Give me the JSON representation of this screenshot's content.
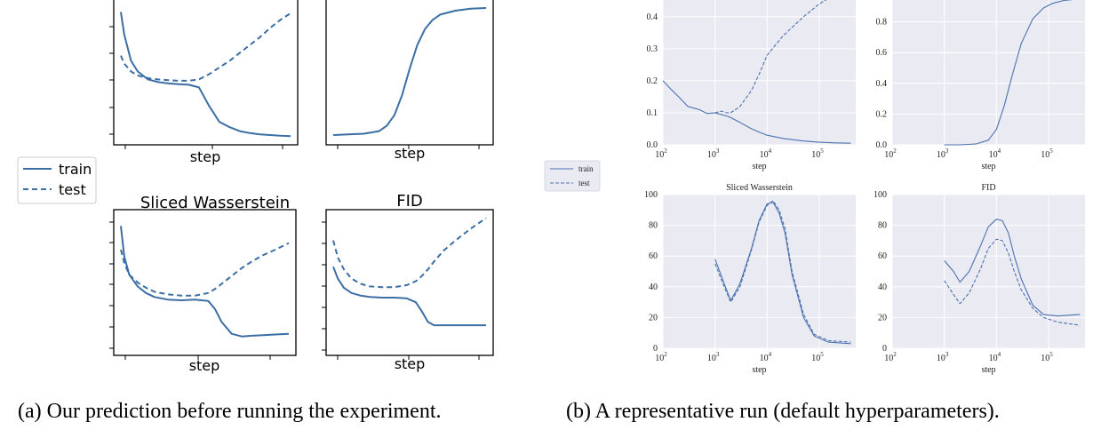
{
  "panel_a": {
    "caption": "(a) Our prediction before running the experiment.",
    "legend": {
      "train": "train",
      "test": "test"
    },
    "charts": [
      {
        "title": "",
        "xlabel": "step"
      },
      {
        "title": "",
        "xlabel": "step"
      },
      {
        "title": "Sliced Wasserstein",
        "xlabel": "step"
      },
      {
        "title": "FID",
        "xlabel": "step"
      }
    ]
  },
  "panel_b": {
    "caption": "(b) A representative run (default hyperparameters).",
    "legend": {
      "train": "train",
      "test": "test"
    }
  },
  "colors": {
    "sketch_line": "#3b6ea5",
    "real_line": "#4c72b0",
    "grid_bg": "#eaeaf2",
    "grid_line": "#ffffff"
  },
  "chart_data": [
    {
      "type": "line",
      "panel": "a",
      "title": "",
      "xlabel": "step",
      "ylabel": "",
      "x": [
        0,
        0.02,
        0.06,
        0.1,
        0.16,
        0.22,
        0.28,
        0.34,
        0.4,
        0.46,
        0.52,
        0.58,
        0.64,
        0.7,
        0.76,
        0.82,
        0.88,
        0.94,
        1.0
      ],
      "series": [
        {
          "name": "train",
          "style": "solid",
          "values": [
            0.95,
            0.78,
            0.58,
            0.5,
            0.44,
            0.42,
            0.41,
            0.405,
            0.4,
            0.38,
            0.24,
            0.12,
            0.08,
            0.05,
            0.035,
            0.025,
            0.02,
            0.015,
            0.012
          ]
        },
        {
          "name": "test",
          "style": "dashed",
          "values": [
            0.62,
            0.56,
            0.5,
            0.47,
            0.45,
            0.44,
            0.435,
            0.43,
            0.43,
            0.44,
            0.48,
            0.53,
            0.58,
            0.64,
            0.7,
            0.76,
            0.83,
            0.89,
            0.94
          ]
        }
      ]
    },
    {
      "type": "line",
      "panel": "a",
      "title": "",
      "xlabel": "step",
      "ylabel": "",
      "x": [
        0,
        0.1,
        0.2,
        0.3,
        0.35,
        0.4,
        0.45,
        0.5,
        0.55,
        0.6,
        0.65,
        0.7,
        0.8,
        0.9,
        1.0
      ],
      "series": [
        {
          "name": "train",
          "style": "solid",
          "values": [
            0.02,
            0.025,
            0.03,
            0.05,
            0.09,
            0.17,
            0.32,
            0.52,
            0.7,
            0.82,
            0.89,
            0.93,
            0.96,
            0.975,
            0.98
          ]
        }
      ]
    },
    {
      "type": "line",
      "panel": "a",
      "title": "Sliced Wasserstein",
      "xlabel": "step",
      "ylabel": "",
      "x": [
        0,
        0.02,
        0.05,
        0.1,
        0.15,
        0.2,
        0.28,
        0.36,
        0.44,
        0.52,
        0.56,
        0.6,
        0.66,
        0.72,
        0.78,
        0.85,
        0.92,
        1.0
      ],
      "series": [
        {
          "name": "train",
          "style": "solid",
          "values": [
            0.93,
            0.7,
            0.56,
            0.47,
            0.42,
            0.39,
            0.37,
            0.365,
            0.37,
            0.36,
            0.3,
            0.2,
            0.11,
            0.09,
            0.095,
            0.1,
            0.105,
            0.11
          ]
        },
        {
          "name": "test",
          "style": "dashed",
          "values": [
            0.75,
            0.65,
            0.56,
            0.5,
            0.46,
            0.43,
            0.41,
            0.4,
            0.4,
            0.42,
            0.45,
            0.49,
            0.55,
            0.61,
            0.66,
            0.71,
            0.75,
            0.8
          ]
        }
      ]
    },
    {
      "type": "line",
      "panel": "a",
      "title": "FID",
      "xlabel": "step",
      "ylabel": "",
      "x": [
        0,
        0.03,
        0.07,
        0.12,
        0.18,
        0.24,
        0.32,
        0.4,
        0.48,
        0.54,
        0.58,
        0.62,
        0.66,
        0.72,
        0.8,
        0.9,
        1.0
      ],
      "series": [
        {
          "name": "train",
          "style": "solid",
          "values": [
            0.62,
            0.53,
            0.46,
            0.42,
            0.4,
            0.39,
            0.385,
            0.385,
            0.38,
            0.35,
            0.28,
            0.2,
            0.175,
            0.175,
            0.175,
            0.175,
            0.175
          ]
        },
        {
          "name": "test",
          "style": "dashed",
          "values": [
            0.82,
            0.69,
            0.6,
            0.53,
            0.49,
            0.47,
            0.465,
            0.465,
            0.48,
            0.51,
            0.55,
            0.6,
            0.66,
            0.74,
            0.82,
            0.91,
            0.99
          ]
        }
      ]
    },
    {
      "type": "line",
      "panel": "b",
      "title": "",
      "xlabel": "step",
      "xscale": "log",
      "xlim": [
        100,
        500000
      ],
      "ylim": [
        0,
        0.48
      ],
      "yticks": [
        0.0,
        0.1,
        0.2,
        0.3,
        0.4
      ],
      "ytick_labels": [
        "0.0",
        "0.1",
        "0.2",
        "0.3",
        "0.4"
      ],
      "grid": true,
      "x": [
        100,
        150,
        200,
        300,
        500,
        700,
        1000,
        1300,
        1700,
        2000,
        3000,
        5000,
        7000,
        10000,
        20000,
        50000,
        100000,
        200000,
        400000
      ],
      "series": [
        {
          "name": "train",
          "style": "solid",
          "values": [
            0.2,
            0.17,
            0.15,
            0.12,
            0.11,
            0.098,
            0.1,
            0.095,
            0.09,
            0.085,
            0.07,
            0.05,
            0.04,
            0.03,
            0.02,
            0.012,
            0.008,
            0.006,
            0.005
          ]
        },
        {
          "name": "test",
          "style": "dashed",
          "values": [
            null,
            null,
            null,
            null,
            null,
            null,
            0.1,
            0.105,
            0.1,
            0.1,
            0.12,
            0.17,
            0.22,
            0.28,
            0.34,
            0.4,
            0.44,
            0.47,
            0.48
          ]
        }
      ]
    },
    {
      "type": "line",
      "panel": "b",
      "title": "",
      "xlabel": "step",
      "xscale": "log",
      "xlim": [
        100,
        500000
      ],
      "ylim": [
        0,
        1.0
      ],
      "yticks": [
        0.0,
        0.2,
        0.4,
        0.6,
        0.8
      ],
      "ytick_labels": [
        "0.0",
        "0.2",
        "0.4",
        "0.6",
        "0.8"
      ],
      "grid": true,
      "x": [
        1000,
        2000,
        4000,
        7000,
        10000,
        14000,
        20000,
        30000,
        50000,
        80000,
        120000,
        200000,
        400000
      ],
      "series": [
        {
          "name": "train",
          "style": "solid",
          "values": [
            0.0,
            0.0,
            0.005,
            0.03,
            0.1,
            0.25,
            0.45,
            0.66,
            0.82,
            0.89,
            0.92,
            0.94,
            0.95
          ]
        }
      ]
    },
    {
      "type": "line",
      "panel": "b",
      "title": "Sliced Wasserstein",
      "xlabel": "step",
      "xscale": "log",
      "xlim": [
        100,
        500000
      ],
      "ylim": [
        0,
        100
      ],
      "yticks": [
        0,
        20,
        40,
        60,
        80,
        100
      ],
      "ytick_labels": [
        "0",
        "20",
        "40",
        "60",
        "80",
        "100"
      ],
      "grid": true,
      "x": [
        1000,
        1500,
        2000,
        3000,
        5000,
        7000,
        10000,
        13000,
        17000,
        22000,
        30000,
        50000,
        80000,
        150000,
        400000
      ],
      "series": [
        {
          "name": "train",
          "style": "solid",
          "values": [
            58,
            42,
            31,
            42,
            65,
            83,
            94,
            95,
            88,
            75,
            48,
            20,
            8,
            4,
            3
          ]
        },
        {
          "name": "test",
          "style": "dashed",
          "values": [
            55,
            40,
            30,
            40,
            64,
            82,
            93,
            96,
            90,
            78,
            50,
            22,
            9,
            5,
            4
          ]
        }
      ]
    },
    {
      "type": "line",
      "panel": "b",
      "title": "FID",
      "xlabel": "step",
      "xscale": "log",
      "xlim": [
        100,
        500000
      ],
      "ylim": [
        0,
        100
      ],
      "yticks": [
        0,
        20,
        40,
        60,
        80,
        100
      ],
      "ytick_labels": [
        "0",
        "20",
        "40",
        "60",
        "80",
        "100"
      ],
      "grid": true,
      "x": [
        1000,
        1500,
        2000,
        3000,
        5000,
        7000,
        10000,
        13000,
        17000,
        22000,
        30000,
        50000,
        80000,
        150000,
        400000
      ],
      "series": [
        {
          "name": "train",
          "style": "solid",
          "values": [
            57,
            50,
            43,
            50,
            67,
            79,
            84,
            83,
            75,
            60,
            45,
            28,
            22,
            21,
            22
          ]
        },
        {
          "name": "test",
          "style": "dashed",
          "values": [
            44,
            35,
            29,
            36,
            52,
            65,
            71,
            70,
            62,
            50,
            38,
            26,
            20,
            17,
            15
          ]
        }
      ]
    }
  ]
}
